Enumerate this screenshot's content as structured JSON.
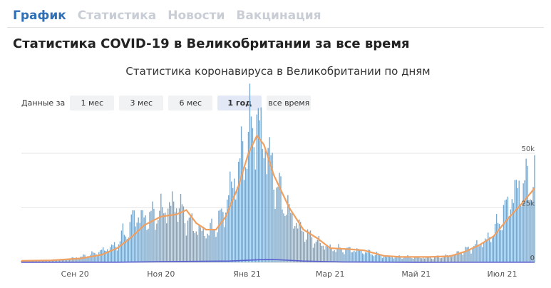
{
  "tabs": [
    {
      "label": "График",
      "active": true
    },
    {
      "label": "Статистика",
      "active": false
    },
    {
      "label": "Новости",
      "active": false
    },
    {
      "label": "Вакцинация",
      "active": false
    }
  ],
  "page_title": "Статистика COVID-19 в Великобритании за все время",
  "range_selector": {
    "label": "Данные за",
    "buttons": [
      "1 мес",
      "3 мес",
      "6 мес",
      "1 год",
      "все время"
    ],
    "active": "1 год"
  },
  "colors": {
    "bars": "#7aa6c9",
    "average_line": "#f0a060",
    "deaths_line": "#5a5fd0",
    "tab_active": "#2e6fb7",
    "tab_inactive": "#c9ced6"
  },
  "chart_data": {
    "type": "bar",
    "title": "Статистика коронавируса в Великобритании по дням",
    "x_tick_labels": [
      "Сен 20",
      "Ноя 20",
      "Янв 21",
      "Мар 21",
      "Май 21",
      "Июл 21"
    ],
    "y_tick_labels": [
      "0",
      "25k",
      "50k"
    ],
    "ylim": [
      0,
      68000
    ],
    "grid": true,
    "x_range": [
      "2020-07-25",
      "2021-07-24"
    ],
    "days": 365,
    "series": [
      {
        "kind": "bars",
        "points": [
          [
            "2020-07-25",
            700
          ],
          [
            "2020-08-01",
            800
          ],
          [
            "2020-08-15",
            1000
          ],
          [
            "2020-08-25",
            1300
          ],
          [
            "2020-09-05",
            2500
          ],
          [
            "2020-09-15",
            4000
          ],
          [
            "2020-09-25",
            6500
          ],
          [
            "2020-10-01",
            8000
          ],
          [
            "2020-10-05",
            13000
          ],
          [
            "2020-10-10",
            15000
          ],
          [
            "2020-10-12",
            22000
          ],
          [
            "2020-10-18",
            20000
          ],
          [
            "2020-10-25",
            21000
          ],
          [
            "2020-11-01",
            23000
          ],
          [
            "2020-11-06",
            25000
          ],
          [
            "2020-11-12",
            27000
          ],
          [
            "2020-11-15",
            24000
          ],
          [
            "2020-11-22",
            18000
          ],
          [
            "2020-11-29",
            14000
          ],
          [
            "2020-12-05",
            14000
          ],
          [
            "2020-12-10",
            17000
          ],
          [
            "2020-12-15",
            22000
          ],
          [
            "2020-12-20",
            33000
          ],
          [
            "2020-12-25",
            40000
          ],
          [
            "2020-12-29",
            50000
          ],
          [
            "2021-01-02",
            56000
          ],
          [
            "2021-01-05",
            63000
          ],
          [
            "2021-01-08",
            64000
          ],
          [
            "2021-01-10",
            60000
          ],
          [
            "2021-01-15",
            52000
          ],
          [
            "2021-01-20",
            40000
          ],
          [
            "2021-01-25",
            30000
          ],
          [
            "2021-01-31",
            23000
          ],
          [
            "2021-02-07",
            16000
          ],
          [
            "2021-02-14",
            12000
          ],
          [
            "2021-02-21",
            9000
          ],
          [
            "2021-03-01",
            6500
          ],
          [
            "2021-03-10",
            6000
          ],
          [
            "2021-03-20",
            5500
          ],
          [
            "2021-04-01",
            4000
          ],
          [
            "2021-04-10",
            2500
          ],
          [
            "2021-04-20",
            2500
          ],
          [
            "2021-05-01",
            2200
          ],
          [
            "2021-05-10",
            2200
          ],
          [
            "2021-05-20",
            2600
          ],
          [
            "2021-05-28",
            3500
          ],
          [
            "2021-06-05",
            5500
          ],
          [
            "2021-06-12",
            7500
          ],
          [
            "2021-06-20",
            10000
          ],
          [
            "2021-06-27",
            16000
          ],
          [
            "2021-07-03",
            24000
          ],
          [
            "2021-07-10",
            32000
          ],
          [
            "2021-07-17",
            36000
          ],
          [
            "2021-07-24",
            36000
          ]
        ]
      },
      {
        "kind": "line",
        "points": [
          [
            "2020-07-25",
            700
          ],
          [
            "2020-08-15",
            900
          ],
          [
            "2020-09-05",
            1800
          ],
          [
            "2020-09-20",
            3500
          ],
          [
            "2020-10-01",
            6500
          ],
          [
            "2020-10-10",
            11000
          ],
          [
            "2020-10-20",
            17000
          ],
          [
            "2020-11-01",
            21000
          ],
          [
            "2020-11-12",
            22000
          ],
          [
            "2020-11-19",
            24000
          ],
          [
            "2020-11-26",
            18000
          ],
          [
            "2020-12-03",
            15000
          ],
          [
            "2020-12-10",
            15000
          ],
          [
            "2020-12-17",
            21000
          ],
          [
            "2020-12-26",
            35000
          ],
          [
            "2021-01-02",
            50000
          ],
          [
            "2021-01-08",
            58000
          ],
          [
            "2021-01-13",
            54000
          ],
          [
            "2021-01-20",
            40000
          ],
          [
            "2021-01-31",
            25000
          ],
          [
            "2021-02-10",
            15000
          ],
          [
            "2021-02-20",
            11000
          ],
          [
            "2021-03-01",
            6500
          ],
          [
            "2021-03-15",
            6000
          ],
          [
            "2021-03-25",
            5500
          ],
          [
            "2021-04-08",
            3000
          ],
          [
            "2021-04-20",
            2500
          ],
          [
            "2021-05-10",
            2500
          ],
          [
            "2021-05-25",
            2800
          ],
          [
            "2021-06-05",
            5000
          ],
          [
            "2021-06-15",
            8000
          ],
          [
            "2021-06-25",
            12000
          ],
          [
            "2021-07-05",
            20000
          ],
          [
            "2021-07-15",
            27000
          ],
          [
            "2021-07-24",
            34000
          ]
        ]
      },
      {
        "kind": "line",
        "points": [
          [
            "2020-07-25",
            30
          ],
          [
            "2020-10-01",
            80
          ],
          [
            "2020-11-15",
            400
          ],
          [
            "2020-12-20",
            600
          ],
          [
            "2021-01-10",
            1200
          ],
          [
            "2021-01-20",
            1300
          ],
          [
            "2021-02-10",
            600
          ],
          [
            "2021-03-10",
            150
          ],
          [
            "2021-05-01",
            30
          ],
          [
            "2021-07-24",
            60
          ]
        ]
      }
    ]
  }
}
